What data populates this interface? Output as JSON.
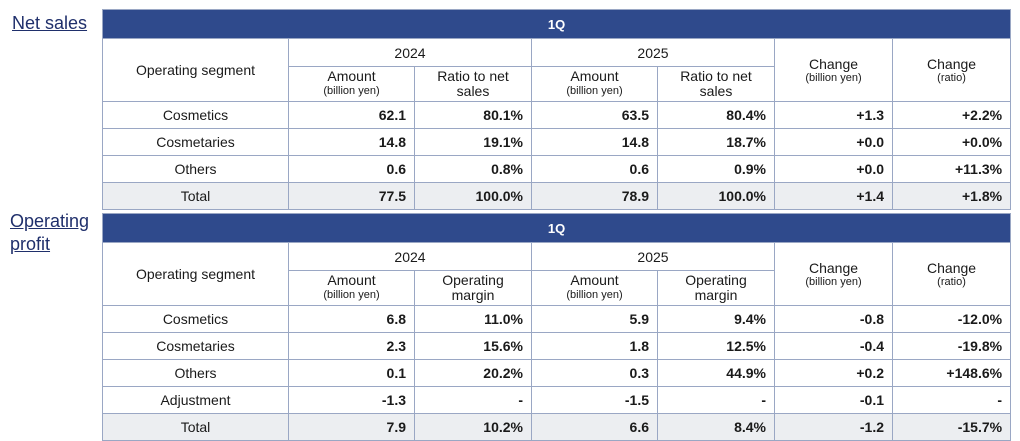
{
  "sections": {
    "net_sales": {
      "label": "Net sales"
    },
    "operating_profit": {
      "label": "Operating\nprofit",
      "line1": "Operating",
      "line2": "profit"
    }
  },
  "net_table": {
    "period": "1Q",
    "segment_header": "Operating segment",
    "year_a": "2024",
    "year_b": "2025",
    "amount_label": "Amount",
    "amount_unit": "(billion yen)",
    "ratio_label_1": "Ratio to net",
    "ratio_label_2": "sales",
    "change_label": "Change",
    "change_unit_yen": "(billion yen)",
    "change_unit_ratio": "(ratio)",
    "rows": [
      {
        "name": "Cosmetics",
        "amt_a": "62.1",
        "ratio_a": "80.1%",
        "amt_b": "63.5",
        "ratio_b": "80.4%",
        "chg": "+1.3",
        "chg_ratio": "+2.2%"
      },
      {
        "name": "Cosmetaries",
        "amt_a": "14.8",
        "ratio_a": "19.1%",
        "amt_b": "14.8",
        "ratio_b": "18.7%",
        "chg": "+0.0",
        "chg_ratio": "+0.0%"
      },
      {
        "name": "Others",
        "amt_a": "0.6",
        "ratio_a": "0.8%",
        "amt_b": "0.6",
        "ratio_b": "0.9%",
        "chg": "+0.0",
        "chg_ratio": "+11.3%"
      },
      {
        "name": "Total",
        "amt_a": "77.5",
        "ratio_a": "100.0%",
        "amt_b": "78.9",
        "ratio_b": "100.0%",
        "chg": "+1.4",
        "chg_ratio": "+1.8%"
      }
    ]
  },
  "op_table": {
    "period": "1Q",
    "segment_header": "Operating segment",
    "year_a": "2024",
    "year_b": "2025",
    "amount_label": "Amount",
    "amount_unit": "(billion yen)",
    "margin_label_1": "Operating",
    "margin_label_2": "margin",
    "change_label": "Change",
    "change_unit_yen": "(billion yen)",
    "change_unit_ratio": "(ratio)",
    "rows": [
      {
        "name": "Cosmetics",
        "amt_a": "6.8",
        "ratio_a": "11.0%",
        "amt_b": "5.9",
        "ratio_b": "9.4%",
        "chg": "-0.8",
        "chg_ratio": "-12.0%"
      },
      {
        "name": "Cosmetaries",
        "amt_a": "2.3",
        "ratio_a": "15.6%",
        "amt_b": "1.8",
        "ratio_b": "12.5%",
        "chg": "-0.4",
        "chg_ratio": "-19.8%"
      },
      {
        "name": "Others",
        "amt_a": "0.1",
        "ratio_a": "20.2%",
        "amt_b": "0.3",
        "ratio_b": "44.9%",
        "chg": "+0.2",
        "chg_ratio": "+148.6%"
      },
      {
        "name": "Adjustment",
        "amt_a": "-1.3",
        "ratio_a": "-",
        "amt_b": "-1.5",
        "ratio_b": "-",
        "chg": "-0.1",
        "chg_ratio": "-"
      },
      {
        "name": "Total",
        "amt_a": "7.9",
        "ratio_a": "10.2%",
        "amt_b": "6.6",
        "ratio_b": "8.4%",
        "chg": "-1.2",
        "chg_ratio": "-15.7%"
      }
    ]
  },
  "colors": {
    "band": "#2f4a8c",
    "label": "#1f2f6b",
    "total_row": "#eceef1",
    "border": "#9aa7c4"
  }
}
